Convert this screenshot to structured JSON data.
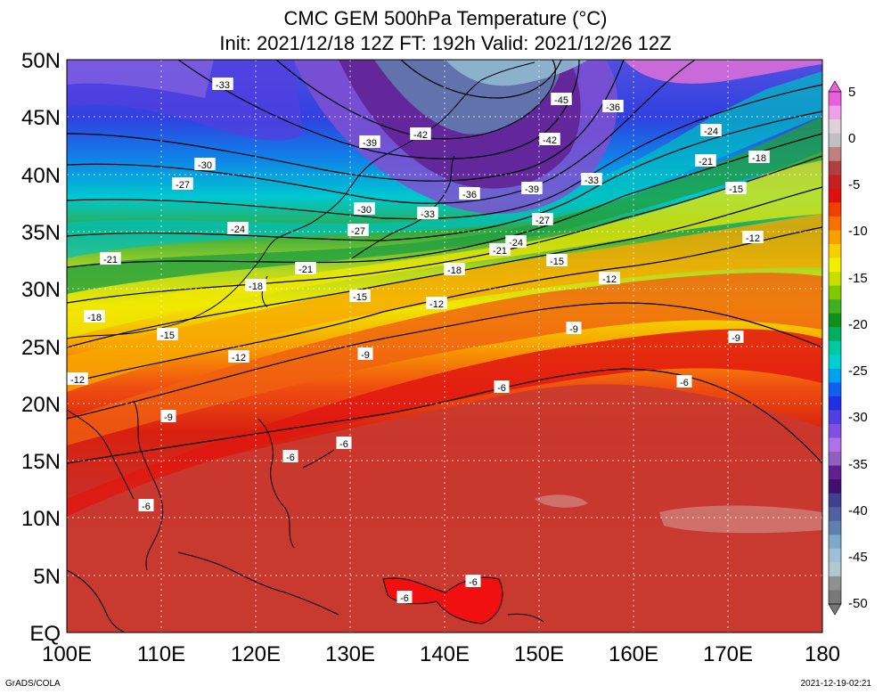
{
  "title_line1": "CMC GEM 500hPa Temperature (°C)",
  "title_line2": "Init: 2021/12/18 12Z  FT: 192h  Valid: 2021/12/26 12Z",
  "credit_left": "GrADS/COLA",
  "credit_right": "2021-12-19-02:21",
  "lat_labels": [
    "50N",
    "45N",
    "40N",
    "35N",
    "30N",
    "25N",
    "20N",
    "15N",
    "10N",
    "5N",
    "EQ"
  ],
  "lon_labels": [
    "100E",
    "110E",
    "120E",
    "130E",
    "140E",
    "150E",
    "160E",
    "170E",
    "180"
  ],
  "colorbar_labels": [
    "5",
    "0",
    "-5",
    "-10",
    "-15",
    "-20",
    "-25",
    "-30",
    "-35",
    "-40",
    "-45",
    "-50"
  ],
  "colorbar_colors": [
    "#e860d8",
    "#f0a0e8",
    "#e0d0d8",
    "#c0c0c0",
    "#c08080",
    "#b04040",
    "#c82020",
    "#e01010",
    "#f04000",
    "#f87000",
    "#f8a000",
    "#f8d000",
    "#f0f000",
    "#c8e000",
    "#80c800",
    "#40b020",
    "#109018",
    "#00b060",
    "#00c8a0",
    "#00d0d0",
    "#00a0f0",
    "#1060f0",
    "#2030e0",
    "#5040e0",
    "#8050e0",
    "#b070e8",
    "#9060c0",
    "#602090",
    "#401070",
    "#404090",
    "#5060a0",
    "#6080b0",
    "#80a8c8",
    "#a0c0d8",
    "#b0c8d0",
    "#909090",
    "#787878"
  ],
  "contour_labels": [
    {
      "text": "-33"
    },
    {
      "text": "-45"
    },
    {
      "text": "-36"
    },
    {
      "text": "-39"
    },
    {
      "text": "-42"
    },
    {
      "text": "-42"
    },
    {
      "text": "-24"
    },
    {
      "text": "-30"
    },
    {
      "text": "-27"
    },
    {
      "text": "-21"
    },
    {
      "text": "-18"
    },
    {
      "text": "-33"
    },
    {
      "text": "-36"
    },
    {
      "text": "-39"
    },
    {
      "text": "-15"
    },
    {
      "text": "-30"
    },
    {
      "text": "-33"
    },
    {
      "text": "-27"
    },
    {
      "text": "-24"
    },
    {
      "text": "-27"
    },
    {
      "text": "-12"
    },
    {
      "text": "-24"
    },
    {
      "text": "-21"
    },
    {
      "text": "-21"
    },
    {
      "text": "-21"
    },
    {
      "text": "-18"
    },
    {
      "text": "-15"
    },
    {
      "text": "-18"
    },
    {
      "text": "-15"
    },
    {
      "text": "-12"
    },
    {
      "text": "-12"
    },
    {
      "text": "-18"
    },
    {
      "text": "-9"
    },
    {
      "text": "-15"
    },
    {
      "text": "-9"
    },
    {
      "text": "-12"
    },
    {
      "text": "-9"
    },
    {
      "text": "-12"
    },
    {
      "text": "-6"
    },
    {
      "text": "-6"
    },
    {
      "text": "-9"
    },
    {
      "text": "-6"
    },
    {
      "text": "-6"
    },
    {
      "text": "-6"
    },
    {
      "text": "-6"
    },
    {
      "text": "-6"
    }
  ]
}
